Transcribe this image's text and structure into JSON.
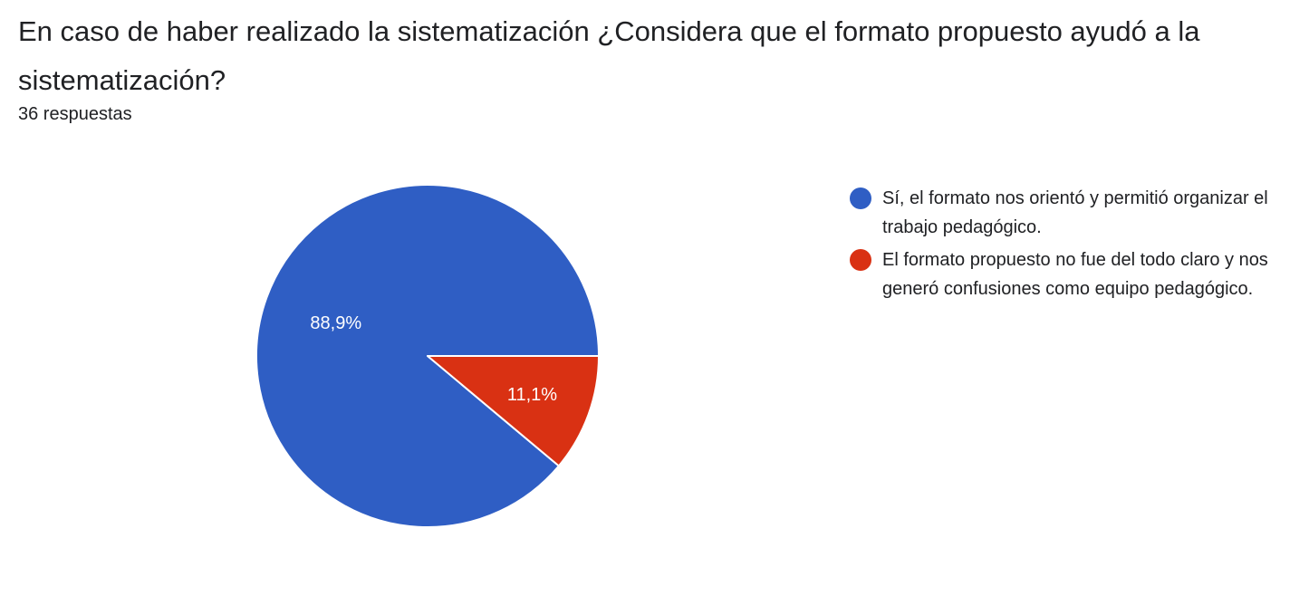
{
  "question": {
    "title": "En caso de haber realizado la sistematización ¿Considera que el formato propuesto ayudó a la sistematización?",
    "responses": "36 respuestas"
  },
  "chart_data": {
    "type": "pie",
    "categories": [
      "Sí, el formato nos orientó y permitió organizar el trabajo pedagógico.",
      "El formato propuesto no fue del todo claro y nos generó confusiones como equipo pedagógico."
    ],
    "values": [
      88.9,
      11.1
    ],
    "labels": [
      "88,9%",
      "11,1%"
    ],
    "colors": [
      "#2f5ec4",
      "#d93113"
    ],
    "legend_position": "right",
    "start_angle_deg": 0,
    "direction": "counterclockwise"
  }
}
